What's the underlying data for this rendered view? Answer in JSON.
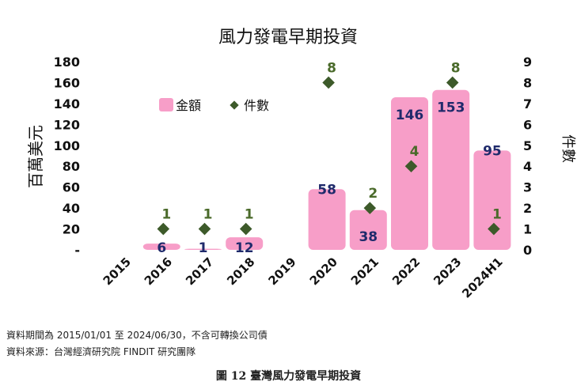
{
  "chart_data": {
    "type": "bar",
    "title": "風力發電早期投資",
    "ylabel": "百萬美元",
    "y2label": "件數",
    "categories": [
      "2015",
      "2016",
      "2017",
      "2018",
      "2019",
      "2020",
      "2021",
      "2022",
      "2023",
      "2024H1"
    ],
    "ylim": [
      0,
      180
    ],
    "y2lim": [
      0,
      9
    ],
    "yticks": [
      "-",
      "20",
      "40",
      "60",
      "80",
      "100",
      "120",
      "140",
      "160",
      "180"
    ],
    "y2ticks": [
      "0",
      "1",
      "2",
      "3",
      "4",
      "5",
      "6",
      "7",
      "8",
      "9"
    ],
    "legend_position": "top-left inside plot",
    "grid": false,
    "series": [
      {
        "name": "金額",
        "kind": "bar",
        "axis": "left",
        "color": "#f79ec8",
        "label_color": "#1f2a6b",
        "values": [
          null,
          6,
          1,
          12,
          null,
          58,
          38,
          146,
          153,
          95
        ],
        "labels": [
          "",
          "6",
          "1",
          "12",
          "",
          "58",
          "38",
          "146",
          "153",
          "95"
        ]
      },
      {
        "name": "件數",
        "kind": "scatter",
        "marker": "diamond",
        "axis": "right",
        "color": "#3d5a2a",
        "label_color": "#4a6a2a",
        "values": [
          null,
          1,
          1,
          1,
          null,
          8,
          2,
          4,
          8,
          1
        ],
        "labels": [
          "",
          "1",
          "1",
          "1",
          "",
          "8",
          "2",
          "4",
          "8",
          "1"
        ]
      }
    ]
  },
  "notes": {
    "period": "資料期間為 2015/01/01 至 2024/06/30，不含可轉換公司債",
    "source": "資料來源：台灣經濟研究院 FINDIT 研究團隊"
  },
  "caption": "圖 12  臺灣風力發電早期投資"
}
